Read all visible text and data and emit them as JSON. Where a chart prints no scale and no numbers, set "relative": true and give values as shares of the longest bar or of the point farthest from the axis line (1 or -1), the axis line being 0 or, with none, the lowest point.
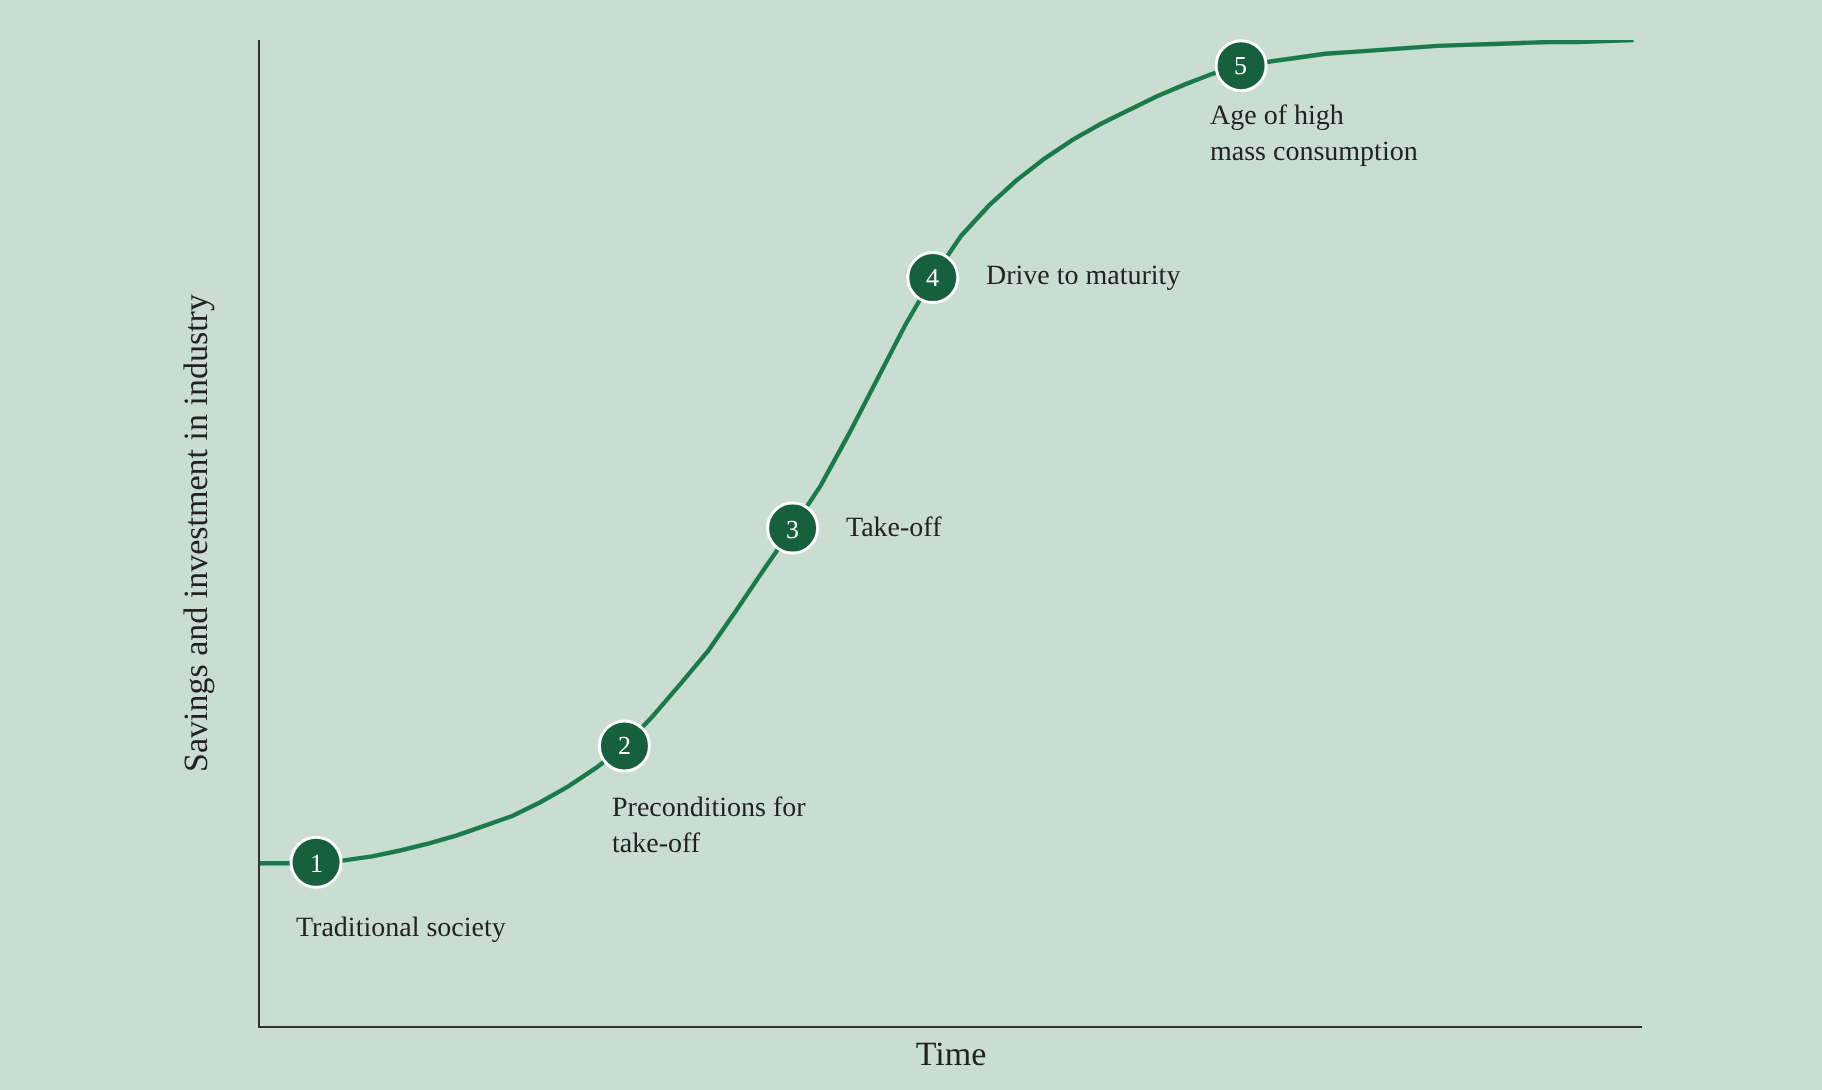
{
  "chart_data": {
    "type": "line",
    "relative": true,
    "xlabel": "Time",
    "ylabel": "Savings and investment in industry",
    "categories": [
      null,
      null,
      null,
      null,
      null,
      null,
      null,
      null,
      null,
      null,
      null,
      null,
      null,
      null,
      null,
      null,
      null,
      null,
      null,
      null,
      null,
      null,
      null,
      null,
      null,
      null,
      null,
      null,
      null,
      null,
      null,
      null,
      null,
      null,
      null,
      null,
      null,
      null,
      null,
      null,
      null,
      null,
      null,
      null,
      null,
      null,
      null,
      null,
      null,
      null
    ],
    "series": [
      {
        "color": "#1a7a4c",
        "values": [
          0.165,
          0.165,
          0.166,
          0.168,
          0.172,
          0.178,
          0.185,
          0.193,
          0.203,
          0.213,
          0.227,
          0.243,
          0.262,
          0.284,
          0.314,
          0.347,
          0.381,
          0.422,
          0.464,
          0.505,
          0.548,
          0.6,
          0.655,
          0.71,
          0.759,
          0.801,
          0.832,
          0.858,
          0.88,
          0.899,
          0.915,
          0.929,
          0.943,
          0.955,
          0.966,
          0.974,
          0.978,
          0.982,
          0.986,
          0.988,
          0.99,
          0.992,
          0.994,
          0.995,
          0.996,
          0.997,
          0.998,
          0.998,
          0.999,
          1
        ]
      }
    ],
    "grid": false,
    "annotations": [
      {
        "text": "1",
        "y": 0.166
      },
      "Traditional society",
      {
        "text": "2",
        "y": 0.284
      },
      "Preconditions for\ntake-off",
      {
        "text": "3",
        "y": 0.505
      },
      "Take-off",
      {
        "text": "4",
        "y": 0.759
      },
      "Drive to maturity",
      {
        "text": "5",
        "y": 0.974
      },
      "Age of high\nmass consumption"
    ]
  }
}
